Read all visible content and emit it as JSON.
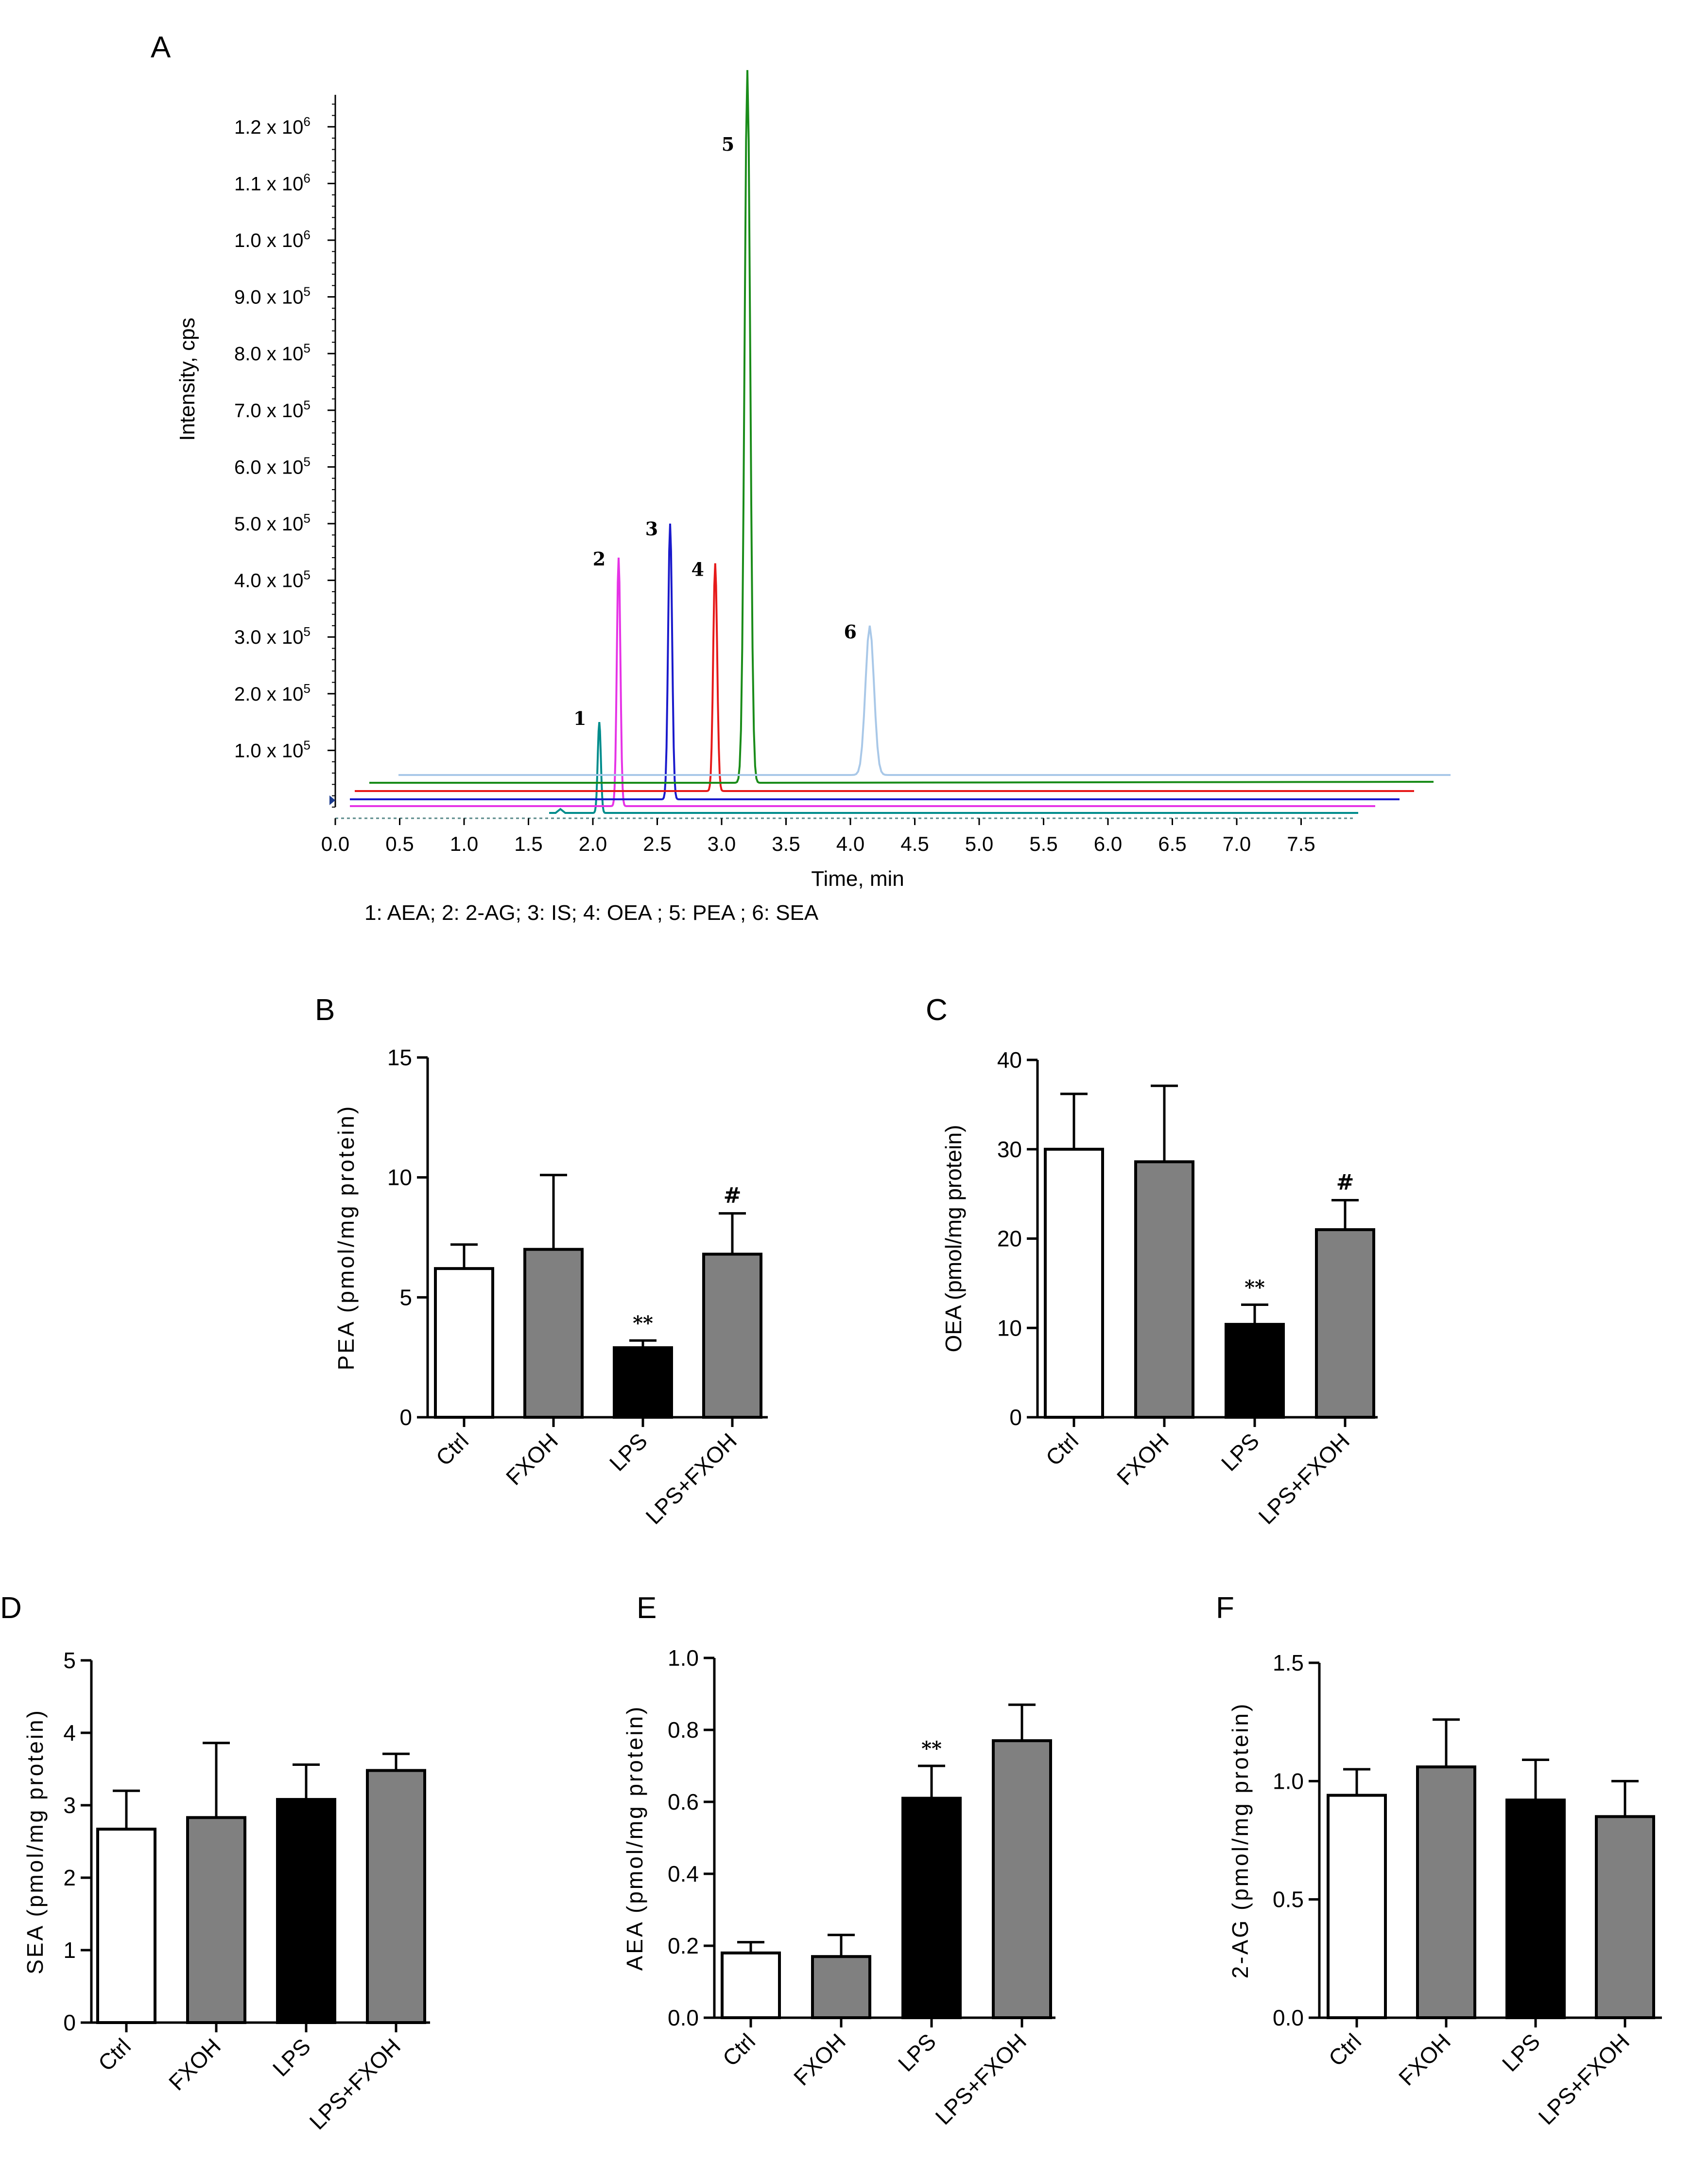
{
  "chart_data": [
    {
      "panel": "A",
      "type": "line",
      "panel_label": "A",
      "title": "",
      "ylabel": "Intensity,  cps",
      "xlabel": "Time,  min",
      "xlim": [
        0.0,
        8.0
      ],
      "ylim": [
        0,
        1300000
      ],
      "x_ticks": [
        "0.0",
        "0.5",
        "1.0",
        "1.5",
        "2.0",
        "2.5",
        "3.0",
        "3.5",
        "4.0",
        "4.5",
        "5.0",
        "5.5",
        "6.0",
        "6.5",
        "7.0",
        "7.5"
      ],
      "y_ticks": [
        {
          "mantissa": "1.0 x 10",
          "exp": "5"
        },
        {
          "mantissa": "2.0 x 10",
          "exp": "5"
        },
        {
          "mantissa": "3.0 x 10",
          "exp": "5"
        },
        {
          "mantissa": "4.0 x 10",
          "exp": "5"
        },
        {
          "mantissa": "5.0 x 10",
          "exp": "5"
        },
        {
          "mantissa": "6.0 x 10",
          "exp": "5"
        },
        {
          "mantissa": "7.0 x 10",
          "exp": "5"
        },
        {
          "mantissa": "8.0 x 10",
          "exp": "5"
        },
        {
          "mantissa": "9.0 x 10",
          "exp": "5"
        },
        {
          "mantissa": "1.0 x 10",
          "exp": "6"
        },
        {
          "mantissa": "1.1 x 10",
          "exp": "6"
        },
        {
          "mantissa": "1.2 x 10",
          "exp": "6"
        }
      ],
      "legend_text": "1: AEA;  2: 2-AG;  3: IS;  4: OEA ;  5: PEA ;  6: SEA",
      "series": [
        {
          "name": "1",
          "label": "1",
          "color": "#008c8c",
          "peak_time": 2.05,
          "peak_intensity": 150000,
          "baseline_intensity": 0
        },
        {
          "name": "2",
          "label": "2",
          "color": "#e633e6",
          "peak_time": 2.2,
          "peak_intensity": 440000,
          "baseline_intensity": 10000
        },
        {
          "name": "3",
          "label": "3",
          "color": "#1a1acc",
          "peak_time": 2.6,
          "peak_intensity": 500000,
          "baseline_intensity": 30000
        },
        {
          "name": "4",
          "label": "4",
          "color": "#e61a1a",
          "peak_time": 2.95,
          "peak_intensity": 430000,
          "baseline_intensity": 50000
        },
        {
          "name": "5",
          "label": "5",
          "color": "#1a8c1a",
          "peak_time": 3.2,
          "peak_intensity": 1300000,
          "baseline_intensity": 65000
        },
        {
          "name": "6",
          "label": "6",
          "color": "#a9c8e8",
          "peak_time": 4.15,
          "peak_intensity": 320000,
          "baseline_intensity": 80000
        }
      ]
    },
    {
      "panel": "B",
      "type": "bar",
      "panel_label": "B",
      "ylabel": "PEA (pmol/mg protein)",
      "ylim": [
        0,
        15
      ],
      "y_ticks": [
        0,
        5,
        10,
        15
      ],
      "categories": [
        "Ctrl",
        "FXOH",
        "LPS",
        "LPS+FXOH"
      ],
      "values": [
        6.2,
        7.0,
        2.9,
        6.8
      ],
      "errors": [
        1.0,
        3.1,
        0.3,
        1.7
      ],
      "colors": [
        "#ffffff",
        "#808080",
        "#000000",
        "#808080"
      ],
      "annotations": [
        "",
        "",
        "**",
        "#"
      ]
    },
    {
      "panel": "C",
      "type": "bar",
      "panel_label": "C",
      "ylabel": "OEA (pmol/mg protein)",
      "ylim": [
        0,
        40
      ],
      "y_ticks": [
        0,
        10,
        20,
        30,
        40
      ],
      "categories": [
        "Ctrl",
        "FXOH",
        "LPS",
        "LPS+FXOH"
      ],
      "values": [
        30.0,
        28.6,
        10.4,
        21.0
      ],
      "errors": [
        6.2,
        8.5,
        2.2,
        3.3
      ],
      "colors": [
        "#ffffff",
        "#808080",
        "#000000",
        "#808080"
      ],
      "annotations": [
        "",
        "",
        "**",
        "#"
      ]
    },
    {
      "panel": "D",
      "type": "bar",
      "panel_label": "D",
      "ylabel": "SEA (pmol/mg protein)",
      "ylim": [
        0,
        5
      ],
      "y_ticks": [
        0,
        1,
        2,
        3,
        4,
        5
      ],
      "categories": [
        "Ctrl",
        "FXOH",
        "LPS",
        "LPS+FXOH"
      ],
      "values": [
        2.67,
        2.83,
        3.08,
        3.48
      ],
      "errors": [
        0.53,
        1.03,
        0.48,
        0.23
      ],
      "colors": [
        "#ffffff",
        "#808080",
        "#000000",
        "#808080"
      ],
      "annotations": [
        "",
        "",
        "",
        ""
      ]
    },
    {
      "panel": "E",
      "type": "bar",
      "panel_label": "E",
      "ylabel": "AEA (pmol/mg protein)",
      "ylim": [
        0,
        1.0
      ],
      "y_ticks": [
        "0.0",
        "0.2",
        "0.4",
        "0.6",
        "0.8",
        "1.0"
      ],
      "categories": [
        "Ctrl",
        "FXOH",
        "LPS",
        "LPS+FXOH"
      ],
      "values": [
        0.18,
        0.17,
        0.61,
        0.77
      ],
      "errors": [
        0.03,
        0.06,
        0.09,
        0.1
      ],
      "colors": [
        "#ffffff",
        "#808080",
        "#000000",
        "#808080"
      ],
      "annotations": [
        "",
        "",
        "**",
        ""
      ]
    },
    {
      "panel": "F",
      "type": "bar",
      "panel_label": "F",
      "ylabel": "2-AG (pmol/mg protein)",
      "ylim": [
        0,
        1.5
      ],
      "y_ticks": [
        "0.0",
        "0.5",
        "1.0",
        "1.5"
      ],
      "categories": [
        "Ctrl",
        "FXOH",
        "LPS",
        "LPS+FXOH"
      ],
      "values": [
        0.94,
        1.06,
        0.92,
        0.85
      ],
      "errors": [
        0.11,
        0.2,
        0.17,
        0.15
      ],
      "colors": [
        "#ffffff",
        "#808080",
        "#000000",
        "#808080"
      ],
      "annotations": [
        "",
        "",
        "",
        ""
      ]
    }
  ]
}
